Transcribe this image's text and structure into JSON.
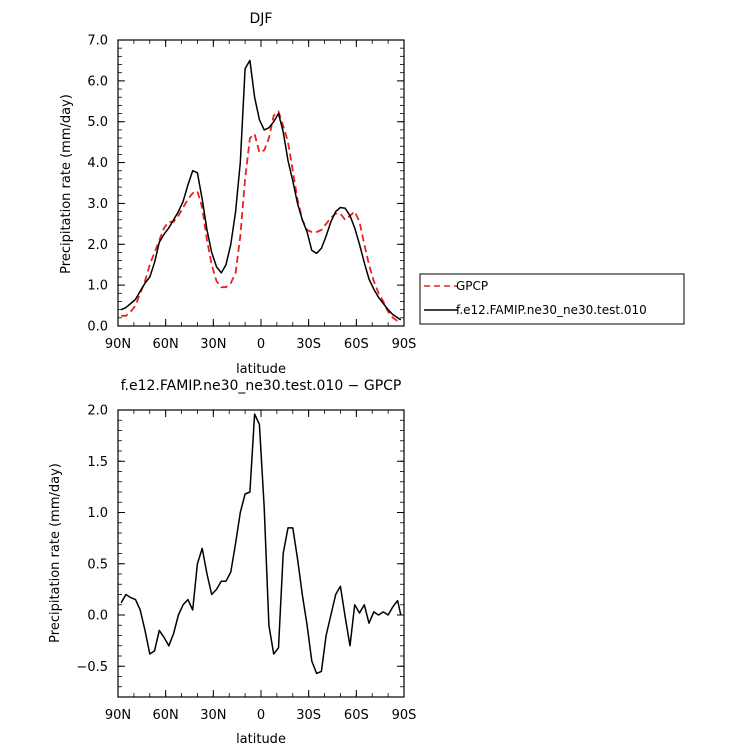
{
  "chart_data": [
    {
      "type": "line",
      "title": "DJF",
      "xlabel": "latitude",
      "ylabel": "Precipitation rate (mm/day)",
      "xlim": [
        90,
        -90
      ],
      "ylim": [
        0,
        7
      ],
      "x_ticks": [
        90,
        60,
        30,
        0,
        -30,
        -60,
        -90
      ],
      "x_tick_labels": [
        "90N",
        "60N",
        "30N",
        "0",
        "30S",
        "60S",
        "90S"
      ],
      "y_ticks": [
        0,
        1,
        2,
        3,
        4,
        5,
        6,
        7
      ],
      "y_tick_labels": [
        "0.0",
        "1.0",
        "2.0",
        "3.0",
        "4.0",
        "5.0",
        "6.0",
        "7.0"
      ],
      "legend_position": "right",
      "series": [
        {
          "name": "GPCP",
          "color": "#e8231f",
          "dash": "dashed",
          "x": [
            88,
            85,
            82,
            79,
            76,
            73,
            70,
            67,
            64,
            61,
            58,
            55,
            52,
            49,
            46,
            43,
            40,
            37,
            34,
            31,
            28,
            25,
            22,
            19,
            16,
            13,
            10,
            7,
            4,
            1,
            -2,
            -5,
            -8,
            -11,
            -14,
            -17,
            -20,
            -23,
            -26,
            -29,
            -32,
            -35,
            -38,
            -41,
            -44,
            -47,
            -50,
            -53,
            -56,
            -59,
            -62,
            -65,
            -68,
            -71,
            -74,
            -77,
            -80,
            -83,
            -86,
            -88
          ],
          "y": [
            0.25,
            0.25,
            0.35,
            0.5,
            0.8,
            1.1,
            1.5,
            1.8,
            2.1,
            2.4,
            2.55,
            2.55,
            2.7,
            2.9,
            3.1,
            3.25,
            3.3,
            2.9,
            2.1,
            1.5,
            1.1,
            0.95,
            0.95,
            1.05,
            1.3,
            2.2,
            3.6,
            4.6,
            4.7,
            4.25,
            4.3,
            4.6,
            5.15,
            5.25,
            4.9,
            4.5,
            3.8,
            3.1,
            2.6,
            2.35,
            2.3,
            2.3,
            2.35,
            2.5,
            2.65,
            2.75,
            2.75,
            2.6,
            2.7,
            2.8,
            2.55,
            2.0,
            1.5,
            1.1,
            0.8,
            0.6,
            0.35,
            0.2,
            0.12,
            0.1
          ]
        },
        {
          "name": "f.e12.FAMIP.ne30_ne30.test.010",
          "color": "#000000",
          "dash": "solid",
          "x": [
            88,
            85,
            82,
            79,
            76,
            73,
            70,
            67,
            64,
            61,
            58,
            55,
            52,
            49,
            46,
            43,
            40,
            37,
            34,
            31,
            28,
            25,
            22,
            19,
            16,
            13,
            10,
            7,
            4,
            1,
            -2,
            -5,
            -8,
            -11,
            -14,
            -17,
            -20,
            -23,
            -26,
            -29,
            -32,
            -35,
            -38,
            -41,
            -44,
            -47,
            -50,
            -53,
            -56,
            -59,
            -62,
            -65,
            -68,
            -71,
            -74,
            -77,
            -80,
            -83,
            -86,
            -88
          ],
          "y": [
            0.4,
            0.45,
            0.55,
            0.65,
            0.85,
            1.05,
            1.2,
            1.55,
            2.05,
            2.25,
            2.4,
            2.6,
            2.8,
            3.05,
            3.45,
            3.8,
            3.75,
            3.1,
            2.35,
            1.8,
            1.45,
            1.3,
            1.5,
            2.0,
            2.8,
            4.0,
            6.3,
            6.5,
            5.6,
            5.05,
            4.8,
            4.85,
            5.0,
            5.2,
            4.75,
            4.05,
            3.55,
            3.0,
            2.6,
            2.3,
            1.85,
            1.78,
            1.9,
            2.2,
            2.55,
            2.8,
            2.9,
            2.88,
            2.7,
            2.4,
            2.0,
            1.55,
            1.15,
            0.9,
            0.7,
            0.55,
            0.4,
            0.28,
            0.2,
            0.15
          ]
        }
      ]
    },
    {
      "type": "line",
      "title": "f.e12.FAMIP.ne30_ne30.test.010 − GPCP",
      "xlabel": "latitude",
      "ylabel": "Precipitation rate (mm/day)",
      "xlim": [
        90,
        -90
      ],
      "ylim": [
        -0.8,
        2.0
      ],
      "x_ticks": [
        90,
        60,
        30,
        0,
        -30,
        -60,
        -90
      ],
      "x_tick_labels": [
        "90N",
        "60N",
        "30N",
        "0",
        "30S",
        "60S",
        "90S"
      ],
      "y_ticks": [
        -0.5,
        0,
        0.5,
        1.0,
        1.5,
        2.0
      ],
      "y_tick_labels": [
        "−0.5",
        "0.0",
        "0.5",
        "1.0",
        "1.5",
        "2.0"
      ],
      "series": [
        {
          "color": "#000000",
          "dash": "solid",
          "x": [
            88,
            85,
            82,
            79,
            76,
            73,
            70,
            67,
            64,
            61,
            58,
            55,
            52,
            49,
            46,
            43,
            40,
            37,
            34,
            31,
            28,
            25,
            22,
            19,
            16,
            13,
            10,
            7,
            4,
            1,
            -2,
            -5,
            -8,
            -11,
            -14,
            -17,
            -20,
            -23,
            -26,
            -29,
            -32,
            -35,
            -38,
            -41,
            -44,
            -47,
            -50,
            -53,
            -56,
            -59,
            -62,
            -65,
            -68,
            -71,
            -74,
            -77,
            -80,
            -83,
            -86,
            -88
          ],
          "y": [
            0.12,
            0.2,
            0.17,
            0.15,
            0.05,
            -0.15,
            -0.38,
            -0.35,
            -0.15,
            -0.22,
            -0.3,
            -0.18,
            0.0,
            0.1,
            0.15,
            0.05,
            0.5,
            0.65,
            0.4,
            0.2,
            0.25,
            0.33,
            0.33,
            0.42,
            0.7,
            1.0,
            1.18,
            1.2,
            1.96,
            1.86,
            1.05,
            -0.1,
            -0.38,
            -0.32,
            0.6,
            0.85,
            0.85,
            0.55,
            0.2,
            -0.1,
            -0.45,
            -0.57,
            -0.55,
            -0.2,
            0.0,
            0.2,
            0.28,
            -0.02,
            -0.3,
            0.1,
            0.02,
            0.1,
            -0.08,
            0.03,
            0.0,
            0.03,
            0.0,
            0.08,
            0.14,
            0.0
          ]
        }
      ]
    }
  ]
}
